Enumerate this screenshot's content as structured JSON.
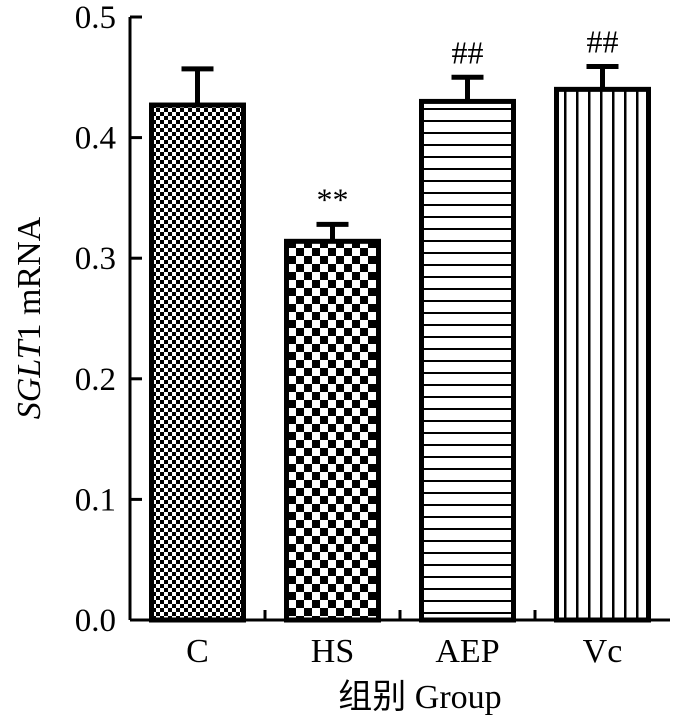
{
  "chart_data": {
    "type": "bar",
    "title": "",
    "xlabel": "组别 Group",
    "ylabel_italic": "SGLT",
    "ylabel_rest": "1 mRNA",
    "ylim": [
      0,
      0.5
    ],
    "yticks": [
      "0.0",
      "0.1",
      "0.2",
      "0.3",
      "0.4",
      "0.5"
    ],
    "categories": [
      "C",
      "HS",
      "AEP",
      "Vc"
    ],
    "values": [
      0.427,
      0.314,
      0.43,
      0.44
    ],
    "errors": [
      0.03,
      0.014,
      0.02,
      0.019
    ],
    "annotations": [
      "",
      "**",
      "##",
      "##"
    ],
    "patterns": [
      "fine-checker",
      "coarse-checker",
      "horizontal-lines",
      "vertical-lines"
    ],
    "colors": {
      "bar_stroke": "#000000",
      "background": "#ffffff"
    }
  }
}
